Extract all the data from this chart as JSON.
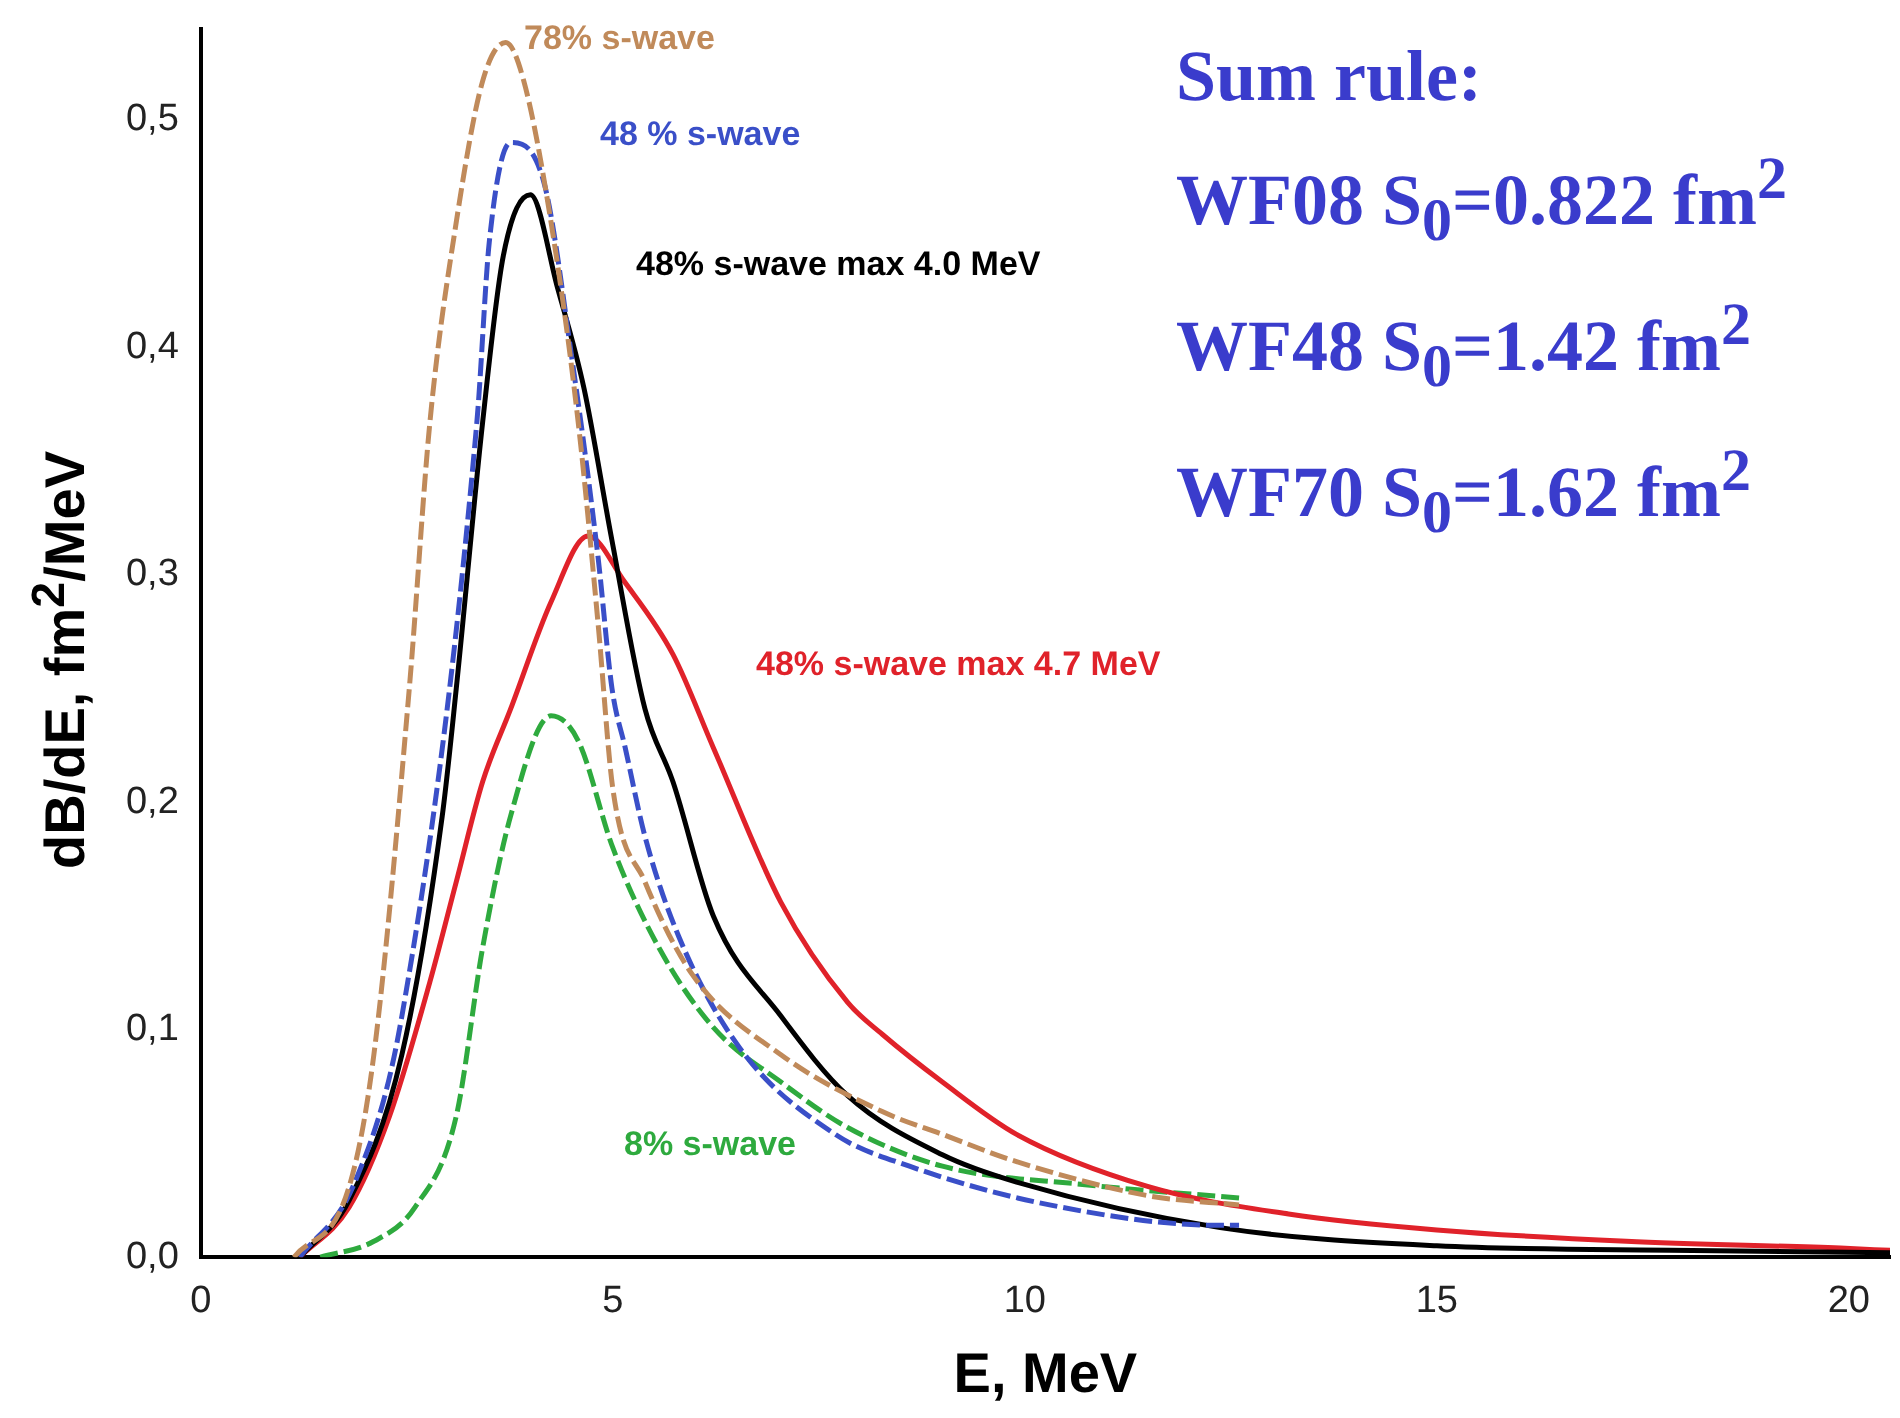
{
  "chart_data": {
    "type": "line",
    "xlabel": "E, MeV",
    "ylabel": "dB/dE, fm$^{2}$/MeV",
    "xlim": [
      0,
      20.5
    ],
    "ylim": [
      0,
      0.54
    ],
    "xticks": [
      0,
      5,
      10,
      15,
      20
    ],
    "yticks": [
      {
        "value": 0,
        "label": "0,0"
      },
      {
        "value": 0.1,
        "label": "0,1"
      },
      {
        "value": 0.2,
        "label": "0,2"
      },
      {
        "value": 0.3,
        "label": "0,3"
      },
      {
        "value": 0.4,
        "label": "0,4"
      },
      {
        "value": 0.5,
        "label": "0,5"
      }
    ],
    "grid": false,
    "legend": false,
    "marker": "none",
    "annotations": [
      "Sum rule:",
      "WF08 S$_{0}$=0.822 fm$^{2}$",
      "WF48 S$_{0}$=1.42 fm$^{2}$",
      "WF70 S$_{0}$=1.62 fm$^{2}$"
    ],
    "series": [
      {
        "name": "78% s-wave",
        "color": "#c08a5a",
        "line_style": "dashed",
        "x": [
          1.13,
          1.8,
          2.1,
          2.53,
          2.78,
          3.1,
          3.42,
          3.7,
          3.92,
          4.25,
          4.58,
          4.82,
          5.0,
          5.39,
          5.97,
          7.04,
          8.27,
          9.0,
          9.9,
          11.5,
          12.6
        ],
        "values": [
          0,
          0.031,
          0.089,
          0.25,
          0.367,
          0.455,
          0.517,
          0.534,
          0.517,
          0.455,
          0.367,
          0.279,
          0.206,
          0.165,
          0.124,
          0.089,
          0.064,
          0.054,
          0.042,
          0.027,
          0.023
        ]
      },
      {
        "name": "48 % s-wave",
        "color": "#3a4fc8",
        "line_style": "dashed",
        "x": [
          1.2,
          1.87,
          2.44,
          3.35,
          3.5,
          3.76,
          4.16,
          4.5,
          4.82,
          4.99,
          5.15,
          5.39,
          5.8,
          6.54,
          7.7,
          8.6,
          10.3,
          12.37,
          12.6
        ],
        "values": [
          0,
          0.033,
          0.106,
          0.367,
          0.446,
          0.49,
          0.473,
          0.396,
          0.308,
          0.25,
          0.224,
          0.185,
          0.141,
          0.092,
          0.054,
          0.04,
          0.023,
          0.014,
          0.014
        ]
      },
      {
        "name": "48% s-wave max 4.0 MeV",
        "color": "#000000",
        "line_style": "solid",
        "x": [
          1.2,
          1.8,
          2.44,
          2.93,
          3.1,
          3.42,
          3.67,
          4.0,
          4.33,
          4.65,
          4.99,
          5.39,
          5.73,
          6.22,
          7.04,
          7.85,
          9.0,
          9.9,
          12.37,
          15,
          18.1,
          20.5
        ],
        "values": [
          0,
          0.025,
          0.089,
          0.194,
          0.25,
          0.367,
          0.44,
          0.467,
          0.426,
          0.382,
          0.315,
          0.241,
          0.209,
          0.15,
          0.106,
          0.071,
          0.045,
          0.033,
          0.013,
          0.005,
          0.003,
          0.002
        ]
      },
      {
        "name": "48% s-wave max 4.7 MeV",
        "color": "#e0222a",
        "line_style": "solid",
        "x": [
          1.2,
          1.8,
          2.29,
          2.78,
          3.1,
          3.42,
          3.76,
          4.25,
          4.7,
          5.14,
          5.73,
          6.22,
          7.04,
          7.85,
          8.27,
          9.0,
          9.9,
          11.5,
          13.2,
          15,
          17.3,
          19.9,
          20.5
        ],
        "values": [
          0,
          0.022,
          0.062,
          0.121,
          0.165,
          0.209,
          0.241,
          0.288,
          0.317,
          0.297,
          0.265,
          0.224,
          0.156,
          0.112,
          0.098,
          0.077,
          0.054,
          0.031,
          0.019,
          0.012,
          0.007,
          0.004,
          0.003
        ]
      },
      {
        "name": "8% s-wave",
        "color": "#2eaa3e",
        "line_style": "dashed",
        "x": [
          1.45,
          2.1,
          2.6,
          3.1,
          3.42,
          3.76,
          4.25,
          4.58,
          5.0,
          5.56,
          6.22,
          7.04,
          7.85,
          9.0,
          10.7,
          12.6
        ],
        "values": [
          0,
          0.007,
          0.022,
          0.062,
          0.136,
          0.194,
          0.238,
          0.227,
          0.18,
          0.136,
          0.101,
          0.077,
          0.057,
          0.04,
          0.032,
          0.026
        ]
      }
    ]
  }
}
